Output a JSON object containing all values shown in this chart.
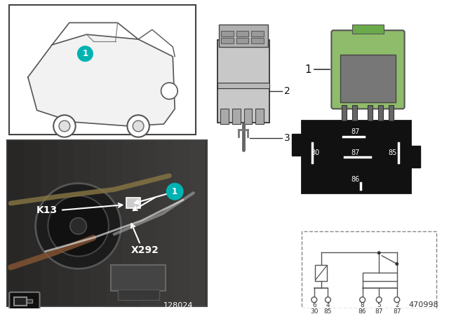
{
  "bg_color": "#ffffff",
  "relay_green": "#8fbc6a",
  "connector_gray": "#cccccc",
  "dark_bg": "#111111",
  "photo_bg": "#3a3a3a",
  "teal": "#00b3b3",
  "catalog_number": "470998",
  "photo_number": "128024",
  "k13_label": "K13",
  "x292_label": "X292",
  "item1": "1",
  "item2": "2",
  "item3": "3",
  "pin_diag_labels": [
    "87",
    "30",
    "87",
    "85",
    "86"
  ],
  "schematic_pin_pos": [
    "6",
    "4",
    "8",
    "5",
    "2"
  ],
  "schematic_pin_names": [
    "30",
    "85",
    "86",
    "87",
    "87"
  ]
}
